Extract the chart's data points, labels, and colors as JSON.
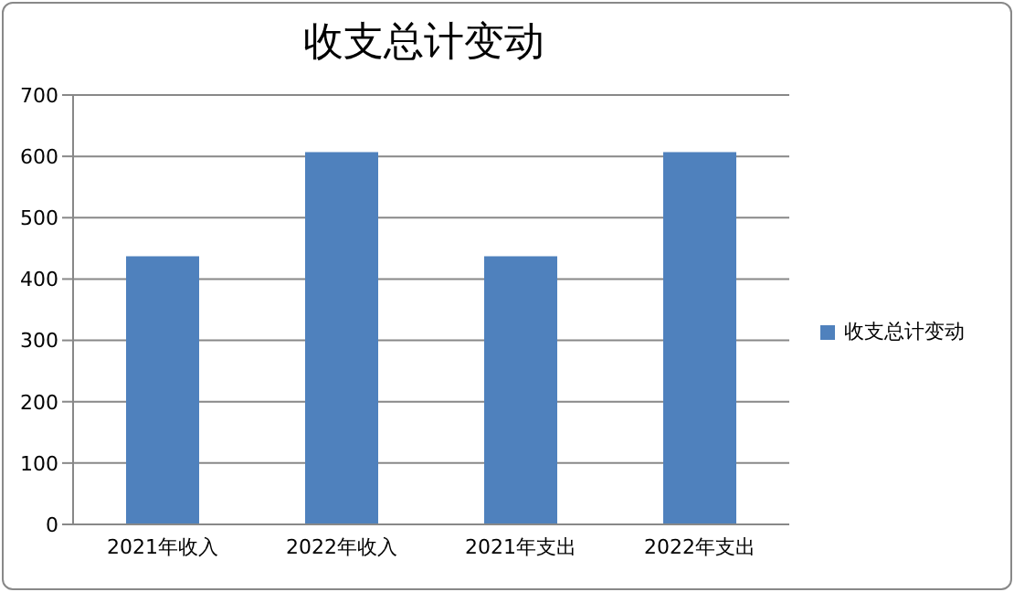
{
  "chart_data": {
    "type": "bar",
    "title": "收支总计变动",
    "categories": [
      "2021年收入",
      "2022年收入",
      "2021年支出",
      "2022年支出"
    ],
    "series": [
      {
        "name": "收支总计变动",
        "color": "#4f81bd",
        "values": [
          437,
          607,
          437,
          607
        ]
      }
    ],
    "ylim": [
      0,
      700
    ],
    "yticks": [
      0,
      100,
      200,
      300,
      400,
      500,
      600,
      700
    ],
    "grid": "y",
    "legend": "right"
  }
}
